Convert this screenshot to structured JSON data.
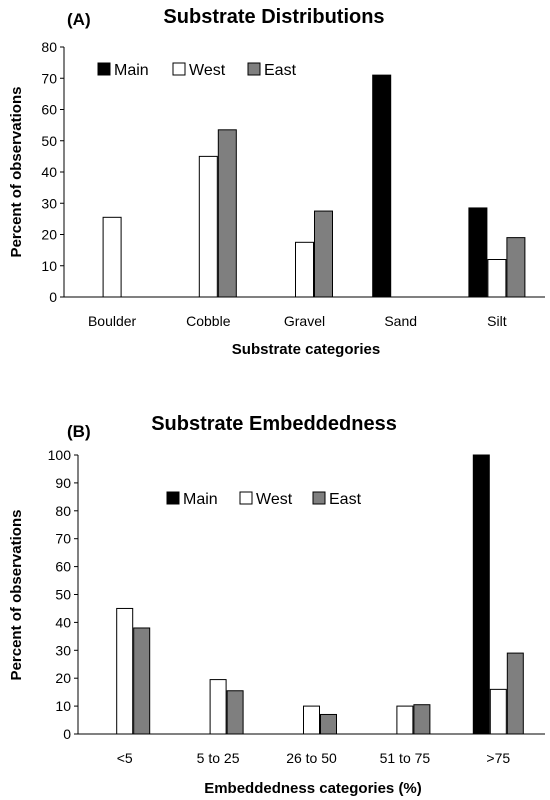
{
  "colors": {
    "Main": "#000000",
    "West": "#ffffff",
    "East": "#7f7f7f"
  },
  "chart_data": [
    {
      "panel_label": "(A)",
      "type": "bar",
      "title": "Substrate Distributions",
      "xlabel": "Substrate categories",
      "ylabel": "Percent of observations",
      "ylim": [
        0,
        80
      ],
      "yticks": [
        "0",
        "10",
        "20",
        "30",
        "40",
        "50",
        "60",
        "70",
        "80"
      ],
      "categories": [
        "Boulder",
        "Cobble",
        "Gravel",
        "Sand",
        "Silt"
      ],
      "series": [
        {
          "name": "Main",
          "values": [
            0,
            0,
            0,
            71,
            28.5
          ]
        },
        {
          "name": "West",
          "values": [
            25.5,
            45,
            17.5,
            0,
            12
          ]
        },
        {
          "name": "East",
          "values": [
            0,
            53.5,
            27.5,
            0,
            19
          ]
        }
      ],
      "legend": "top-left inside",
      "grid": false
    },
    {
      "panel_label": "(B)",
      "type": "bar",
      "title": "Substrate Embeddedness",
      "xlabel": "Embeddedness categories (%)",
      "ylabel": "Percent of observations",
      "ylim": [
        0,
        100
      ],
      "yticks": [
        "0",
        "10",
        "20",
        "30",
        "40",
        "50",
        "60",
        "70",
        "80",
        "90",
        "100"
      ],
      "categories": [
        "<5",
        "5 to 25",
        "26 to 50",
        "51 to 75",
        ">75"
      ],
      "series": [
        {
          "name": "Main",
          "values": [
            0,
            0,
            0,
            0,
            100
          ]
        },
        {
          "name": "West",
          "values": [
            45,
            19.5,
            10,
            10,
            16
          ]
        },
        {
          "name": "East",
          "values": [
            38,
            15.5,
            7,
            10.5,
            29
          ]
        }
      ],
      "legend": "top-center inside",
      "grid": false
    }
  ]
}
